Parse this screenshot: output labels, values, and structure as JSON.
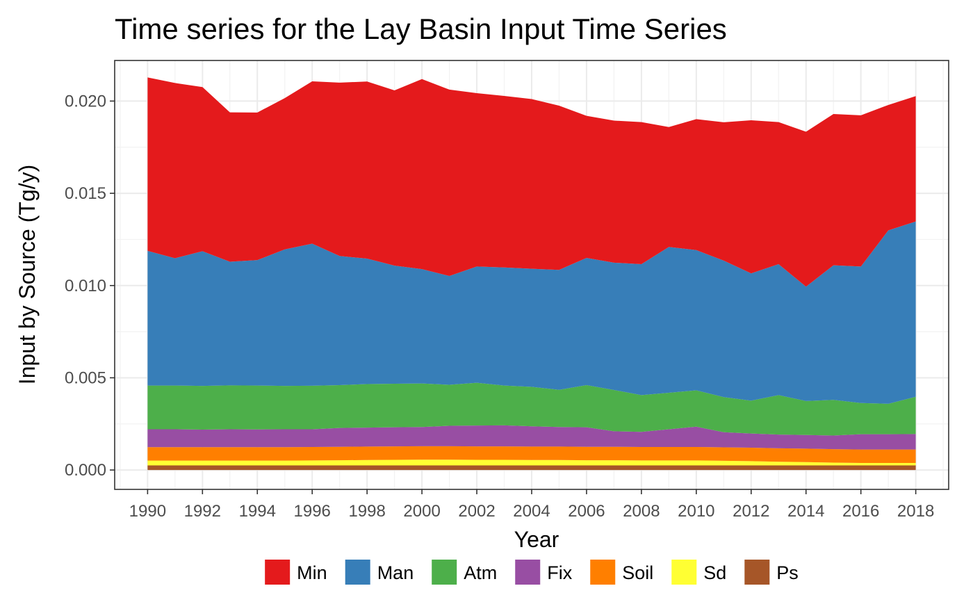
{
  "chart_data": {
    "type": "area",
    "stacked": true,
    "title": "Time series for the Lay Basin Input Time Series",
    "xlabel": "Year",
    "ylabel": "Input by Source (Tg/y)",
    "xlim": [
      1988.8,
      2019.2
    ],
    "ylim": [
      -0.00105,
      0.0222
    ],
    "x_ticks": [
      1990,
      1992,
      1994,
      1996,
      1998,
      2000,
      2002,
      2004,
      2006,
      2008,
      2010,
      2012,
      2014,
      2016,
      2018
    ],
    "x_tick_labels": [
      "1990",
      "1992",
      "1994",
      "1996",
      "1998",
      "2000",
      "2002",
      "2004",
      "2006",
      "2008",
      "2010",
      "2012",
      "2014",
      "2016",
      "2018"
    ],
    "y_ticks": [
      0,
      0.005,
      0.01,
      0.015,
      0.02
    ],
    "y_tick_labels": [
      "0.000",
      "0.005",
      "0.010",
      "0.015",
      "0.020"
    ],
    "grid": true,
    "legend_position": "bottom",
    "theme": "bw",
    "x": [
      1990,
      1991,
      1992,
      1993,
      1994,
      1995,
      1996,
      1997,
      1998,
      1999,
      2000,
      2001,
      2002,
      2003,
      2004,
      2005,
      2006,
      2007,
      2008,
      2009,
      2010,
      2011,
      2012,
      2013,
      2014,
      2015,
      2016,
      2017,
      2018
    ],
    "stack_order_bottom_to_top": [
      "Ps",
      "Sd",
      "Soil",
      "Fix",
      "Atm",
      "Man",
      "Min"
    ],
    "series": [
      {
        "name": "Min",
        "color": "#E41A1C",
        "values": [
          0.0094,
          0.0095,
          0.0089,
          0.0081,
          0.008,
          0.0082,
          0.0088,
          0.0094,
          0.0096,
          0.0095,
          0.0103,
          0.0101,
          0.0094,
          0.0093,
          0.0092,
          0.0089,
          0.0077,
          0.0077,
          0.0077,
          0.0065,
          0.0071,
          0.0075,
          0.0083,
          0.0077,
          0.0084,
          0.0082,
          0.0082,
          0.0068,
          0.0068
        ]
      },
      {
        "name": "Man",
        "color": "#377EB8",
        "values": [
          0.0073,
          0.0069,
          0.0073,
          0.0067,
          0.0068,
          0.0074,
          0.0077,
          0.007,
          0.0068,
          0.0064,
          0.0062,
          0.0059,
          0.0063,
          0.0064,
          0.0064,
          0.0065,
          0.0069,
          0.0069,
          0.0071,
          0.0079,
          0.0076,
          0.0074,
          0.0069,
          0.0071,
          0.0062,
          0.0073,
          0.0074,
          0.0094,
          0.0095
        ]
      },
      {
        "name": "Atm",
        "color": "#4DAF4A",
        "values": [
          0.00237,
          0.00237,
          0.00237,
          0.00238,
          0.00238,
          0.00235,
          0.00236,
          0.00232,
          0.00236,
          0.00236,
          0.00236,
          0.00222,
          0.00232,
          0.00216,
          0.00214,
          0.00202,
          0.00228,
          0.00224,
          0.00199,
          0.00198,
          0.00197,
          0.0019,
          0.00178,
          0.00214,
          0.00184,
          0.00193,
          0.00169,
          0.00165,
          0.00202
        ]
      },
      {
        "name": "Fix",
        "color": "#984EA3",
        "values": [
          0.00097,
          0.00097,
          0.00095,
          0.00097,
          0.00096,
          0.00097,
          0.00096,
          0.00102,
          0.00103,
          0.00104,
          0.00104,
          0.00111,
          0.00113,
          0.00114,
          0.0011,
          0.00106,
          0.00106,
          0.00084,
          0.00082,
          0.00096,
          0.0011,
          0.00082,
          0.00077,
          0.00074,
          0.00074,
          0.00074,
          0.00083,
          0.00083,
          0.00084
        ]
      },
      {
        "name": "Soil",
        "color": "#FF7F00",
        "values": [
          0.00073,
          0.00073,
          0.00073,
          0.00073,
          0.00073,
          0.00073,
          0.00073,
          0.00073,
          0.00073,
          0.00073,
          0.00073,
          0.00073,
          0.00073,
          0.00073,
          0.00073,
          0.00073,
          0.00073,
          0.00073,
          0.00073,
          0.00073,
          0.00073,
          0.00073,
          0.00073,
          0.00073,
          0.00073,
          0.00073,
          0.00073,
          0.00073,
          0.00073
        ]
      },
      {
        "name": "Sd",
        "color": "#FFFF33",
        "values": [
          0.00026,
          0.00026,
          0.00026,
          0.00026,
          0.00026,
          0.00026,
          0.00027,
          0.00028,
          0.00029,
          0.0003,
          0.00031,
          0.00031,
          0.0003,
          0.0003,
          0.00029,
          0.00029,
          0.00028,
          0.00028,
          0.00027,
          0.00027,
          0.00027,
          0.00025,
          0.00023,
          0.0002,
          0.00018,
          0.00015,
          0.00013,
          0.00013,
          0.00013
        ]
      },
      {
        "name": "Ps",
        "color": "#A65628",
        "values": [
          0.00025,
          0.00025,
          0.00025,
          0.00025,
          0.00025,
          0.00025,
          0.00025,
          0.00025,
          0.00025,
          0.00025,
          0.00025,
          0.00025,
          0.00025,
          0.00025,
          0.00025,
          0.00025,
          0.00025,
          0.00025,
          0.00025,
          0.00025,
          0.00025,
          0.00025,
          0.00025,
          0.00025,
          0.00025,
          0.00025,
          0.00025,
          0.00025,
          0.00025
        ]
      }
    ],
    "legend": [
      {
        "name": "Min",
        "color": "#E41A1C"
      },
      {
        "name": "Man",
        "color": "#377EB8"
      },
      {
        "name": "Atm",
        "color": "#4DAF4A"
      },
      {
        "name": "Fix",
        "color": "#984EA3"
      },
      {
        "name": "Soil",
        "color": "#FF7F00"
      },
      {
        "name": "Sd",
        "color": "#FFFF33"
      },
      {
        "name": "Ps",
        "color": "#A65628"
      }
    ]
  }
}
